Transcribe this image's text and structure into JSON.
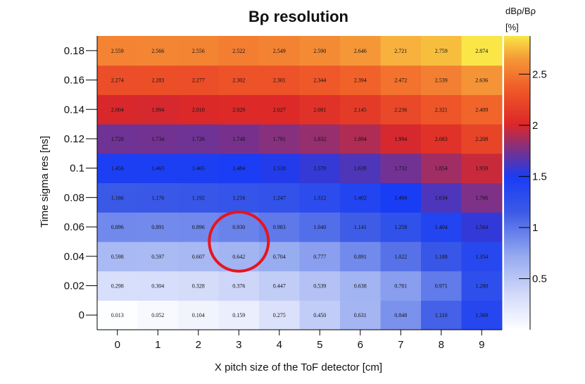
{
  "chart_data": {
    "type": "heatmap",
    "title": "Bρ resolution",
    "xlabel": "X pitch size of the ToF detector [cm]",
    "ylabel": "Time sigma res [ns]",
    "colorbar_title_line1": "dBρ/Bρ",
    "colorbar_title_line2": "[%]",
    "x_categories": [
      "0",
      "1",
      "2",
      "3",
      "4",
      "5",
      "6",
      "7",
      "8",
      "9"
    ],
    "y_categories": [
      "0",
      "0.02",
      "0.04",
      "0.06",
      "0.08",
      "0.1",
      "0.12",
      "0.14",
      "0.16",
      "0.18"
    ],
    "zlim": [
      0,
      2.874
    ],
    "colorbar_ticks": [
      "0.5",
      "1",
      "1.5",
      "2",
      "2.5"
    ],
    "values": [
      [
        "0.013",
        "0.052",
        "0.104",
        "0.159",
        "0.275",
        "0.450",
        "0.631",
        "0.848",
        "1.110",
        "1.368"
      ],
      [
        "0.298",
        "0.304",
        "0.328",
        "0.376",
        "0.447",
        "0.539",
        "0.638",
        "0.781",
        "0.971",
        "1.280"
      ],
      [
        "0.598",
        "0.597",
        "0.607",
        "0.642",
        "0.704",
        "0.777",
        "0.891",
        "1.022",
        "1.188",
        "1.354"
      ],
      [
        "0.896",
        "0.891",
        "0.896",
        "0.930",
        "0.983",
        "1.040",
        "1.141",
        "1.258",
        "1.404",
        "1.564"
      ],
      [
        "1.166",
        "1.176",
        "1.192",
        "1.216",
        "1.247",
        "1.312",
        "1.402",
        "1.494",
        "1.634",
        "1.766"
      ],
      [
        "1.456",
        "1.463",
        "1.465",
        "1.484",
        "1.518",
        "1.570",
        "1.639",
        "1.732",
        "1.854",
        "1.959"
      ],
      [
        "1.728",
        "1.734",
        "1.726",
        "1.748",
        "1.791",
        "1.832",
        "1.894",
        "1.994",
        "2.083",
        "2.208"
      ],
      [
        "2.004",
        "1.994",
        "2.010",
        "2.029",
        "2.027",
        "2.081",
        "2.145",
        "2.236",
        "2.321",
        "2.409"
      ],
      [
        "2.274",
        "2.283",
        "2.277",
        "2.302",
        "2.301",
        "2.344",
        "2.394",
        "2.472",
        "2.539",
        "2.636"
      ],
      [
        "2.559",
        "2.566",
        "2.556",
        "2.522",
        "2.549",
        "2.590",
        "2.646",
        "2.721",
        "2.759",
        "2.874"
      ]
    ],
    "highlight": {
      "x": "3",
      "y": "0.05",
      "color": "#e8141e"
    }
  }
}
